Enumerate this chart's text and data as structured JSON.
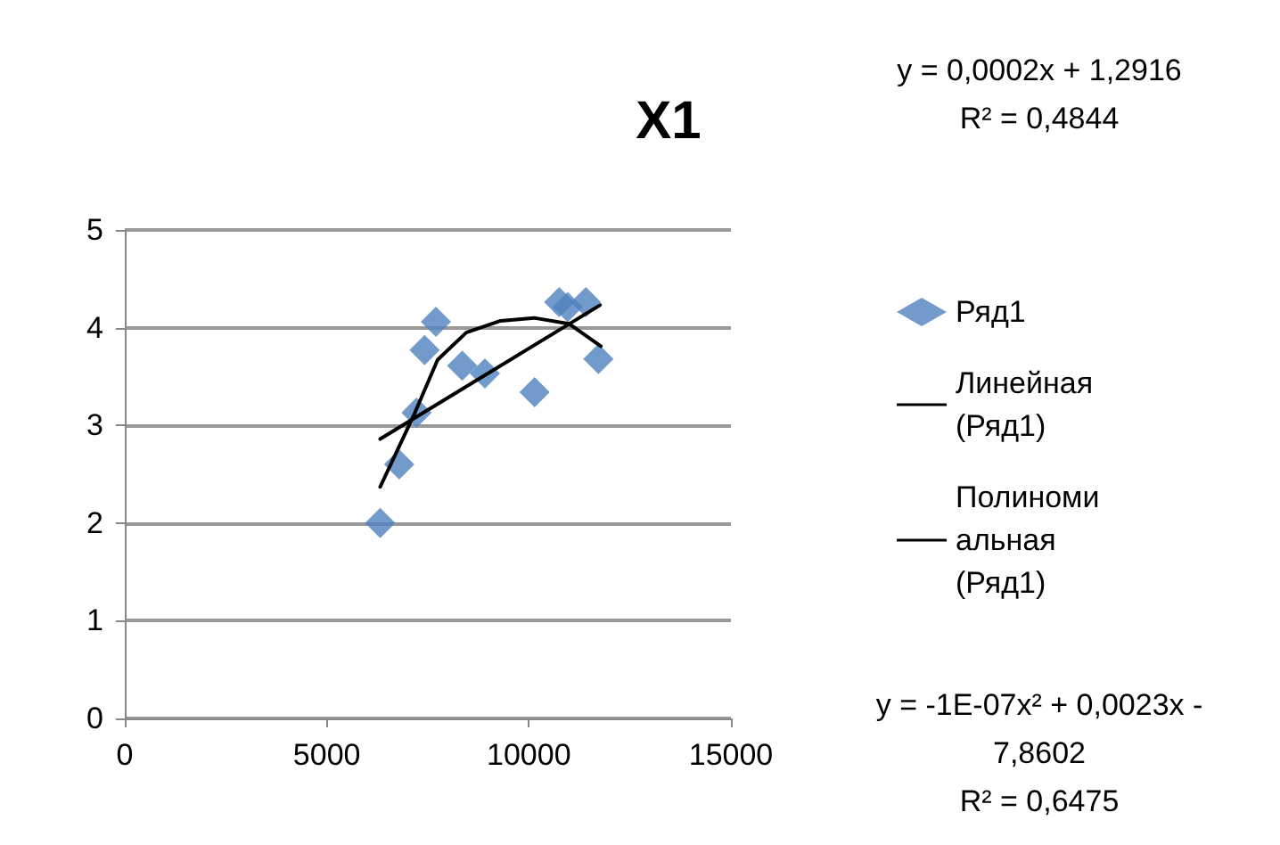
{
  "chart_data": {
    "type": "scatter",
    "title": "X1",
    "xlim": [
      0,
      15000
    ],
    "xticks": [
      0,
      5000,
      10000,
      15000
    ],
    "ylim": [
      0,
      5
    ],
    "yticks": [
      0,
      1,
      2,
      3,
      4,
      5
    ],
    "grid": "y",
    "legend": "right",
    "marker": "diamond",
    "annotations": [
      "y = 0,0002x + 1,2916\nR² = 0,4844",
      "y = -1E-07x² + 0,0023x -\n7,8602\nR² = 0,6475"
    ],
    "series": [
      {
        "name": "Ряд1",
        "color": "#4f81bd",
        "x": [
          6320,
          6790,
          7220,
          7420,
          7700,
          8350,
          8910,
          10140,
          10750,
          10960,
          11410,
          11720
        ],
        "values": [
          2.0,
          2.6,
          3.13,
          3.77,
          4.06,
          3.61,
          3.53,
          3.34,
          4.26,
          4.21,
          4.26,
          3.68
        ]
      },
      {
        "name": "Линейная (Ряд1)",
        "type": "line",
        "marker": "none",
        "color": "#000000",
        "x": [
          6320,
          11760
        ],
        "values": [
          2.86,
          4.23
        ]
      },
      {
        "name": "Полиномиальная (Ряд1)",
        "type": "line",
        "marker": "none",
        "color": "#000000",
        "x": [
          6320,
          7170,
          7740,
          8450,
          9300,
          10130,
          10990,
          11780
        ],
        "values": [
          2.37,
          3.12,
          3.67,
          3.95,
          4.07,
          4.1,
          4.04,
          3.81
        ]
      }
    ]
  }
}
